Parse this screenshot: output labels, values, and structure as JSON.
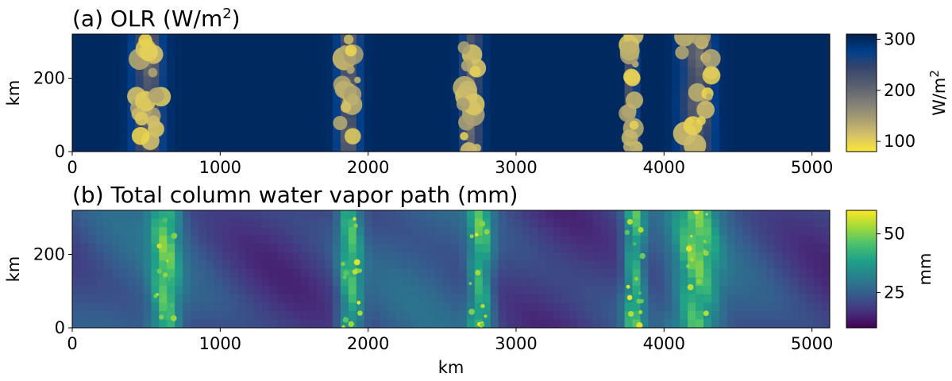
{
  "chart_data": [
    {
      "type": "heatmap",
      "panel": "a",
      "title": "(a) OLR (W/m",
      "title_superscript": "2",
      "title_suffix": ")",
      "xlabel": "",
      "ylabel": "km",
      "xlim": [
        0,
        5120
      ],
      "ylim": [
        0,
        320
      ],
      "xticks": [
        "0",
        "1000",
        "2000",
        "3000",
        "4000",
        "5000"
      ],
      "yticks": [
        "0",
        "200"
      ],
      "colormap": "cividis_r",
      "colorbar": {
        "label": "W/m",
        "label_superscript": "2",
        "range": [
          80,
          310
        ],
        "ticks": [
          "100",
          "200",
          "300"
        ],
        "stops": [
          "#fde737",
          "#d4c16a",
          "#a59c74",
          "#7c7b78",
          "#575d6d",
          "#35456c",
          "#003e8a",
          "#00204c"
        ]
      },
      "field_description": "low OLR (yellow) in convective bands, high OLR (dark blue) elsewhere",
      "convective_band_centers_km": [
        510,
        1870,
        2700,
        3780,
        4220
      ],
      "convective_band_halfwidth_km": [
        120,
        90,
        80,
        40,
        130
      ],
      "value_range": [
        85,
        310
      ]
    },
    {
      "type": "heatmap",
      "panel": "b",
      "title": "(b) Total column water vapor path (mm)",
      "xlabel": "km",
      "ylabel": "km",
      "xlim": [
        0,
        5120
      ],
      "ylim": [
        0,
        320
      ],
      "xticks": [
        "0",
        "1000",
        "2000",
        "3000",
        "4000",
        "5000"
      ],
      "yticks": [
        "0",
        "200"
      ],
      "colormap": "viridis",
      "colorbar": {
        "label": "mm",
        "range": [
          10,
          60
        ],
        "ticks": [
          "25",
          "50"
        ],
        "stops": [
          "#440154",
          "#46327e",
          "#365c8d",
          "#277f8e",
          "#1fa187",
          "#4ac16d",
          "#a0da39",
          "#fde725"
        ]
      },
      "field_description": "moist bands (green-yellow) co-located with convective bands, dry regions (purple) between",
      "moist_band_centers_km": [
        630,
        1880,
        2760,
        3800,
        4220
      ],
      "value_range": [
        12,
        60
      ]
    }
  ]
}
